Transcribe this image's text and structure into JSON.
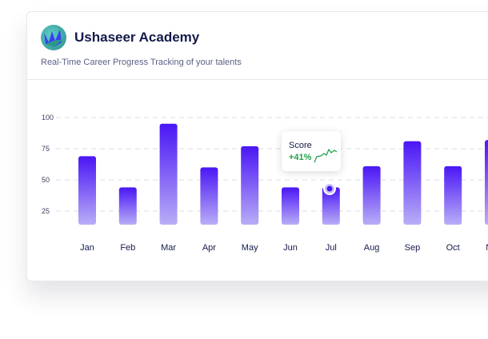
{
  "header": {
    "title": "Ushaseer Academy",
    "subtitle": "Real-Time Career Progress Tracking of your talents"
  },
  "tooltip": {
    "label": "Score",
    "value": "+41%",
    "month": "Jul"
  },
  "colors": {
    "bar_top": "#4a16f5",
    "bar_bottom": "#b9adf7",
    "positive": "#21a04a"
  },
  "chart_data": {
    "type": "bar",
    "title": "",
    "categories": [
      "Jan",
      "Feb",
      "Mar",
      "Apr",
      "May",
      "Jun",
      "Jul",
      "Aug",
      "Sep",
      "Oct",
      "Nov"
    ],
    "values": [
      69,
      44,
      95,
      60,
      77,
      44,
      44,
      61,
      81,
      61,
      82
    ],
    "yticks": [
      25,
      50,
      75,
      100
    ],
    "ylim": [
      0,
      100
    ],
    "grid": true,
    "xlabel": "",
    "ylabel": ""
  }
}
